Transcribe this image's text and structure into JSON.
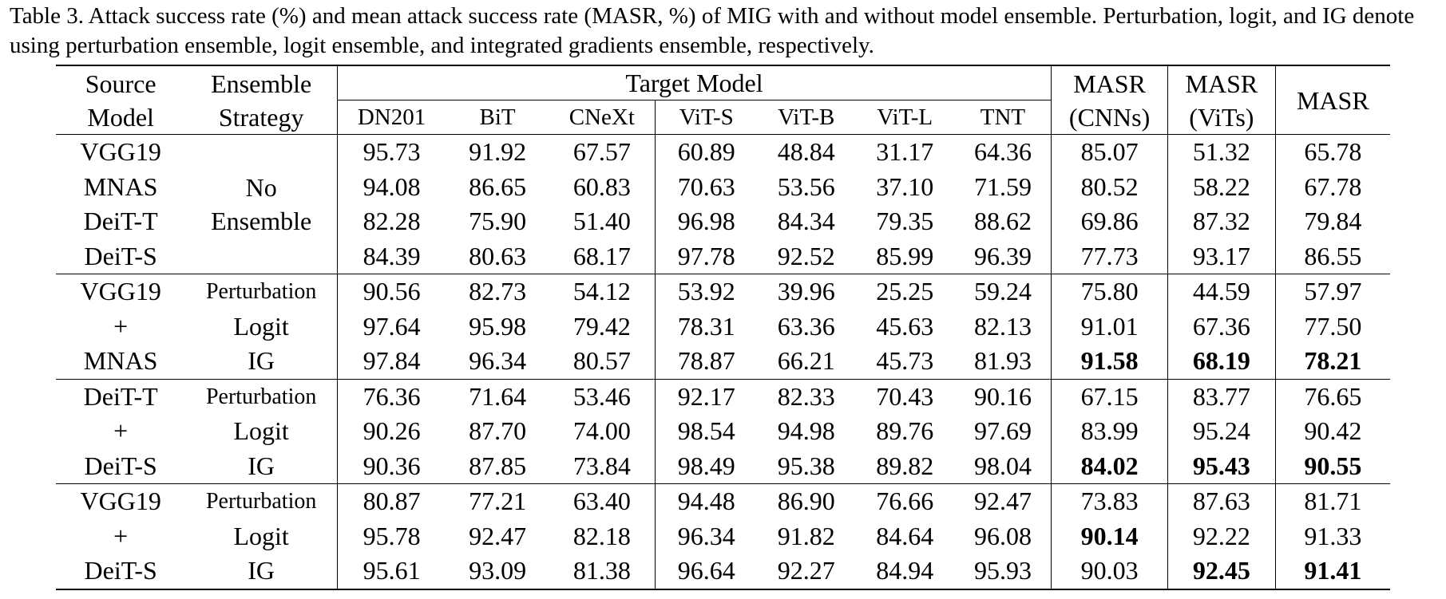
{
  "caption": "Table 3. Attack success rate (%) and mean attack success rate (MASR, %) of MIG with and without model ensemble. Perturbation, logit, and IG denote using perturbation ensemble, logit ensemble, and integrated gradients ensemble, respectively.",
  "header": {
    "source_model": [
      "Source",
      "Model"
    ],
    "ensemble_strategy": [
      "Ensemble",
      "Strategy"
    ],
    "target_model": "Target Model",
    "targets": [
      "DN201",
      "BiT",
      "CNeXt",
      "ViT-S",
      "ViT-B",
      "ViT-L",
      "TNT"
    ],
    "masr_cnns": [
      "MASR",
      "(CNNs)"
    ],
    "masr_vits": [
      "MASR",
      "(ViTs)"
    ],
    "masr": "MASR"
  },
  "groups": [
    {
      "strategy_label": [
        "No",
        "Ensemble"
      ],
      "rows": [
        {
          "source": "VGG19",
          "strategy": "",
          "values": [
            "95.73",
            "91.92",
            "67.57",
            "60.89",
            "48.84",
            "31.17",
            "64.36",
            "85.07",
            "51.32",
            "65.78"
          ],
          "bold": []
        },
        {
          "source": "MNAS",
          "strategy": "",
          "values": [
            "94.08",
            "86.65",
            "60.83",
            "70.63",
            "53.56",
            "37.10",
            "71.59",
            "80.52",
            "58.22",
            "67.78"
          ],
          "bold": []
        },
        {
          "source": "DeiT-T",
          "strategy": "",
          "values": [
            "82.28",
            "75.90",
            "51.40",
            "96.98",
            "84.34",
            "79.35",
            "88.62",
            "69.86",
            "87.32",
            "79.84"
          ],
          "bold": []
        },
        {
          "source": "DeiT-S",
          "strategy": "",
          "values": [
            "84.39",
            "80.63",
            "68.17",
            "97.78",
            "92.52",
            "85.99",
            "96.39",
            "77.73",
            "93.17",
            "86.55"
          ],
          "bold": []
        }
      ]
    },
    {
      "rows": [
        {
          "source": "VGG19",
          "strategy": "Perturbation",
          "values": [
            "90.56",
            "82.73",
            "54.12",
            "53.92",
            "39.96",
            "25.25",
            "59.24",
            "75.80",
            "44.59",
            "57.97"
          ],
          "bold": []
        },
        {
          "source": "+",
          "strategy": "Logit",
          "values": [
            "97.64",
            "95.98",
            "79.42",
            "78.31",
            "63.36",
            "45.63",
            "82.13",
            "91.01",
            "67.36",
            "77.50"
          ],
          "bold": []
        },
        {
          "source": "MNAS",
          "strategy": "IG",
          "values": [
            "97.84",
            "96.34",
            "80.57",
            "78.87",
            "66.21",
            "45.73",
            "81.93",
            "91.58",
            "68.19",
            "78.21"
          ],
          "bold": [
            7,
            8,
            9
          ]
        }
      ]
    },
    {
      "rows": [
        {
          "source": "DeiT-T",
          "strategy": "Perturbation",
          "values": [
            "76.36",
            "71.64",
            "53.46",
            "92.17",
            "82.33",
            "70.43",
            "90.16",
            "67.15",
            "83.77",
            "76.65"
          ],
          "bold": []
        },
        {
          "source": "+",
          "strategy": "Logit",
          "values": [
            "90.26",
            "87.70",
            "74.00",
            "98.54",
            "94.98",
            "89.76",
            "97.69",
            "83.99",
            "95.24",
            "90.42"
          ],
          "bold": []
        },
        {
          "source": "DeiT-S",
          "strategy": "IG",
          "values": [
            "90.36",
            "87.85",
            "73.84",
            "98.49",
            "95.38",
            "89.82",
            "98.04",
            "84.02",
            "95.43",
            "90.55"
          ],
          "bold": [
            7,
            8,
            9
          ]
        }
      ]
    },
    {
      "rows": [
        {
          "source": "VGG19",
          "strategy": "Perturbation",
          "values": [
            "80.87",
            "77.21",
            "63.40",
            "94.48",
            "86.90",
            "76.66",
            "92.47",
            "73.83",
            "87.63",
            "81.71"
          ],
          "bold": []
        },
        {
          "source": "+",
          "strategy": "Logit",
          "values": [
            "95.78",
            "92.47",
            "82.18",
            "96.34",
            "91.82",
            "84.64",
            "96.08",
            "90.14",
            "92.22",
            "91.33"
          ],
          "bold": [
            7
          ]
        },
        {
          "source": "DeiT-S",
          "strategy": "IG",
          "values": [
            "95.61",
            "93.09",
            "81.38",
            "96.64",
            "92.27",
            "84.94",
            "95.93",
            "90.03",
            "92.45",
            "91.41"
          ],
          "bold": [
            8,
            9
          ]
        }
      ]
    }
  ]
}
